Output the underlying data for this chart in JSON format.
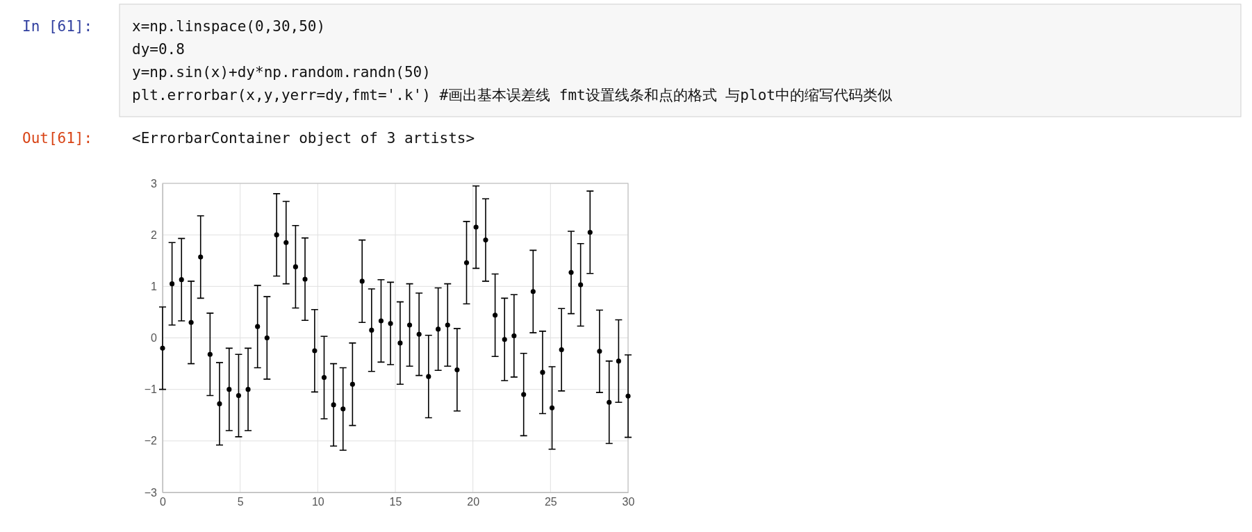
{
  "chart_data": {
    "type": "scatter",
    "x": [
      0,
      0.61,
      1.22,
      1.84,
      2.45,
      3.06,
      3.67,
      4.29,
      4.9,
      5.51,
      6.12,
      6.73,
      7.35,
      7.96,
      8.57,
      9.18,
      9.8,
      10.41,
      11.02,
      11.63,
      12.24,
      12.86,
      13.47,
      14.08,
      14.69,
      15.31,
      15.92,
      16.53,
      17.14,
      17.76,
      18.37,
      18.98,
      19.59,
      20.2,
      20.82,
      21.43,
      22.04,
      22.65,
      23.27,
      23.88,
      24.49,
      25.1,
      25.71,
      26.33,
      26.94,
      27.55,
      28.16,
      28.78,
      29.39,
      30
    ],
    "series": [
      {
        "color": "#000000",
        "values": [
          -0.2,
          1.05,
          1.13,
          0.3,
          1.57,
          -0.32,
          -1.28,
          -1.0,
          -1.12,
          -1.0,
          0.22,
          0.0,
          2.0,
          1.85,
          1.38,
          1.14,
          -0.25,
          -0.77,
          -1.3,
          -1.38,
          -0.9,
          1.1,
          0.15,
          0.33,
          0.28,
          -0.1,
          0.25,
          0.07,
          -0.75,
          0.17,
          0.25,
          -0.62,
          1.46,
          2.15,
          1.9,
          0.44,
          -0.03,
          0.04,
          -1.1,
          0.9,
          -0.67,
          -1.36,
          -0.23,
          1.27,
          1.03,
          2.05,
          -0.26,
          -1.25,
          -0.45,
          -1.13
        ],
        "errors": [
          0.8,
          0.8,
          0.8,
          0.8,
          0.8,
          0.8,
          0.8,
          0.8,
          0.8,
          0.8,
          0.8,
          0.8,
          0.8,
          0.8,
          0.8,
          0.8,
          0.8,
          0.8,
          0.8,
          0.8,
          0.8,
          0.8,
          0.8,
          0.8,
          0.8,
          0.8,
          0.8,
          0.8,
          0.8,
          0.8,
          0.8,
          0.8,
          0.8,
          0.8,
          0.8,
          0.8,
          0.8,
          0.8,
          0.8,
          0.8,
          0.8,
          0.8,
          0.8,
          0.8,
          0.8,
          0.8,
          0.8,
          0.8,
          0.8,
          0.8
        ]
      }
    ],
    "xlim": [
      0,
      30
    ],
    "xticks": [
      0,
      5,
      10,
      15,
      20,
      25,
      30
    ],
    "ylim": [
      -3,
      3
    ],
    "yticks": [
      -3,
      -2,
      -1,
      0,
      1,
      2,
      3
    ],
    "grid": true,
    "marker": "circle",
    "annotations": [
      "In [61]:",
      "x=np.linspace(0,30,50)",
      "dy=0.8",
      "y=np.sin(x)+dy*np.random.randn(50)",
      "plt.errorbar(x,y,yerr=dy,fmt='.k')  #画出基本误差线    fmt设置线条和点的格式  与plot中的缩写代码类似",
      "Out[61]:",
      "<ErrorbarContainer object of 3 artists>"
    ]
  }
}
